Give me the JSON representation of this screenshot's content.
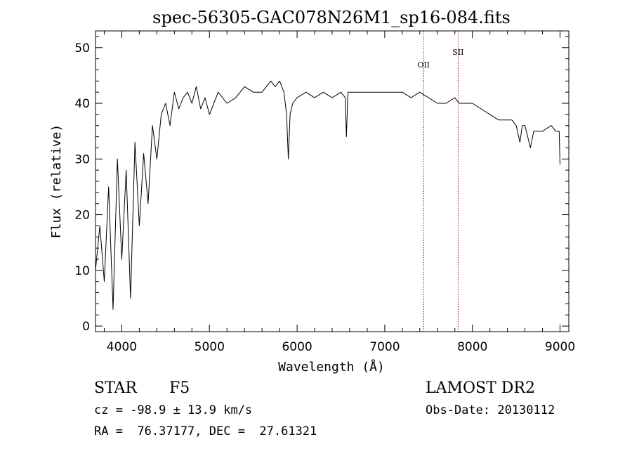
{
  "chart_data": {
    "type": "line",
    "title": "spec-56305-GAC078N26M1_sp16-084.fits",
    "xlabel": "Wavelength (Å)",
    "ylabel": "Flux (relative)",
    "xlim": [
      3700,
      9100
    ],
    "ylim": [
      -1,
      53
    ],
    "xticks": [
      4000,
      5000,
      6000,
      7000,
      8000,
      9000
    ],
    "yticks": [
      0,
      10,
      20,
      30,
      40,
      50
    ],
    "grid": false,
    "series": [
      {
        "color": "#000000",
        "x": [
          3700,
          3750,
          3800,
          3850,
          3900,
          3950,
          4000,
          4050,
          4100,
          4150,
          4200,
          4250,
          4300,
          4350,
          4400,
          4450,
          4500,
          4550,
          4600,
          4650,
          4700,
          4750,
          4800,
          4850,
          4900,
          4950,
          5000,
          5100,
          5200,
          5300,
          5400,
          5500,
          5600,
          5700,
          5750,
          5800,
          5850,
          5880,
          5900,
          5920,
          5950,
          6000,
          6100,
          6200,
          6300,
          6400,
          6500,
          6550,
          6563,
          6580,
          6600,
          6700,
          6800,
          6900,
          7000,
          7100,
          7200,
          7300,
          7400,
          7500,
          7600,
          7700,
          7800,
          7850,
          7900,
          8000,
          8100,
          8200,
          8300,
          8400,
          8450,
          8500,
          8542,
          8570,
          8600,
          8662,
          8700,
          8800,
          8900,
          8950,
          8990,
          9000
        ],
        "y": [
          10,
          18,
          8,
          25,
          3,
          30,
          12,
          28,
          5,
          33,
          18,
          31,
          22,
          36,
          30,
          38,
          40,
          36,
          42,
          39,
          41,
          42,
          40,
          43,
          39,
          41,
          38,
          42,
          40,
          41,
          43,
          42,
          42,
          44,
          43,
          44,
          42,
          38,
          30,
          38,
          40,
          41,
          42,
          41,
          42,
          41,
          42,
          41,
          34,
          42,
          42,
          42,
          42,
          42,
          42,
          42,
          42,
          41,
          42,
          41,
          40,
          40,
          41,
          40,
          40,
          40,
          39,
          38,
          37,
          37,
          37,
          36,
          33,
          36,
          36,
          32,
          35,
          35,
          36,
          35,
          35,
          29
        ]
      }
    ],
    "annotations": [
      {
        "label": "OII",
        "x": 7443,
        "color": "#8b0000",
        "style": "dotted"
      },
      {
        "label": "SII",
        "x": 7837,
        "color": "#8b0000",
        "style": "dotted"
      }
    ]
  },
  "footer": {
    "class_label": "STAR",
    "subclass_label": "F5",
    "survey_label": "LAMOST DR2",
    "cz_text": "cz = -98.9 ± 13.9 km/s",
    "obs_date_text": "Obs-Date: 20130112",
    "radec_text": "RA =  76.37177, DEC =  27.61321"
  }
}
